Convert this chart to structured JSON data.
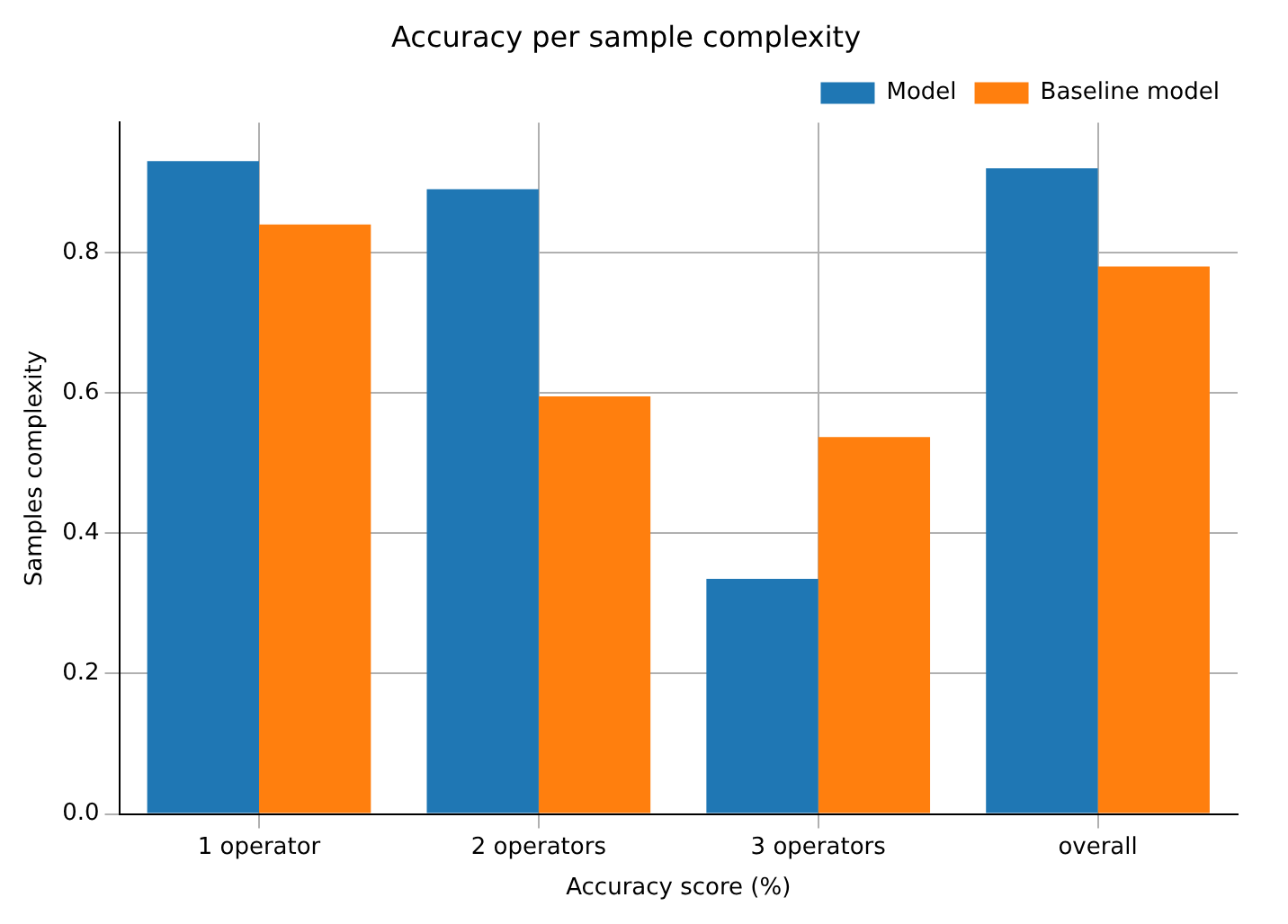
{
  "chart_data": {
    "type": "bar",
    "title": "Accuracy per sample complexity",
    "xlabel": "Accuracy score (%)",
    "ylabel": "Samples complexity",
    "categories": [
      "1 operator",
      "2 operators",
      "3 operators",
      "overall"
    ],
    "series": [
      {
        "name": "Model",
        "color": "#1f77b4",
        "values": [
          0.93,
          0.89,
          0.335,
          0.92
        ]
      },
      {
        "name": "Baseline model",
        "color": "#ff7f0e",
        "values": [
          0.84,
          0.595,
          0.537,
          0.78
        ]
      }
    ],
    "ylim": [
      0,
      0.985
    ],
    "yticks": [
      {
        "value": 0,
        "label": "0.0"
      },
      {
        "value": 0.2,
        "label": "0.2"
      },
      {
        "value": 0.4,
        "label": "0.4"
      },
      {
        "value": 0.6,
        "label": "0.6"
      },
      {
        "value": 0.8,
        "label": "0.8"
      }
    ],
    "grid": true,
    "legend": "top right"
  }
}
